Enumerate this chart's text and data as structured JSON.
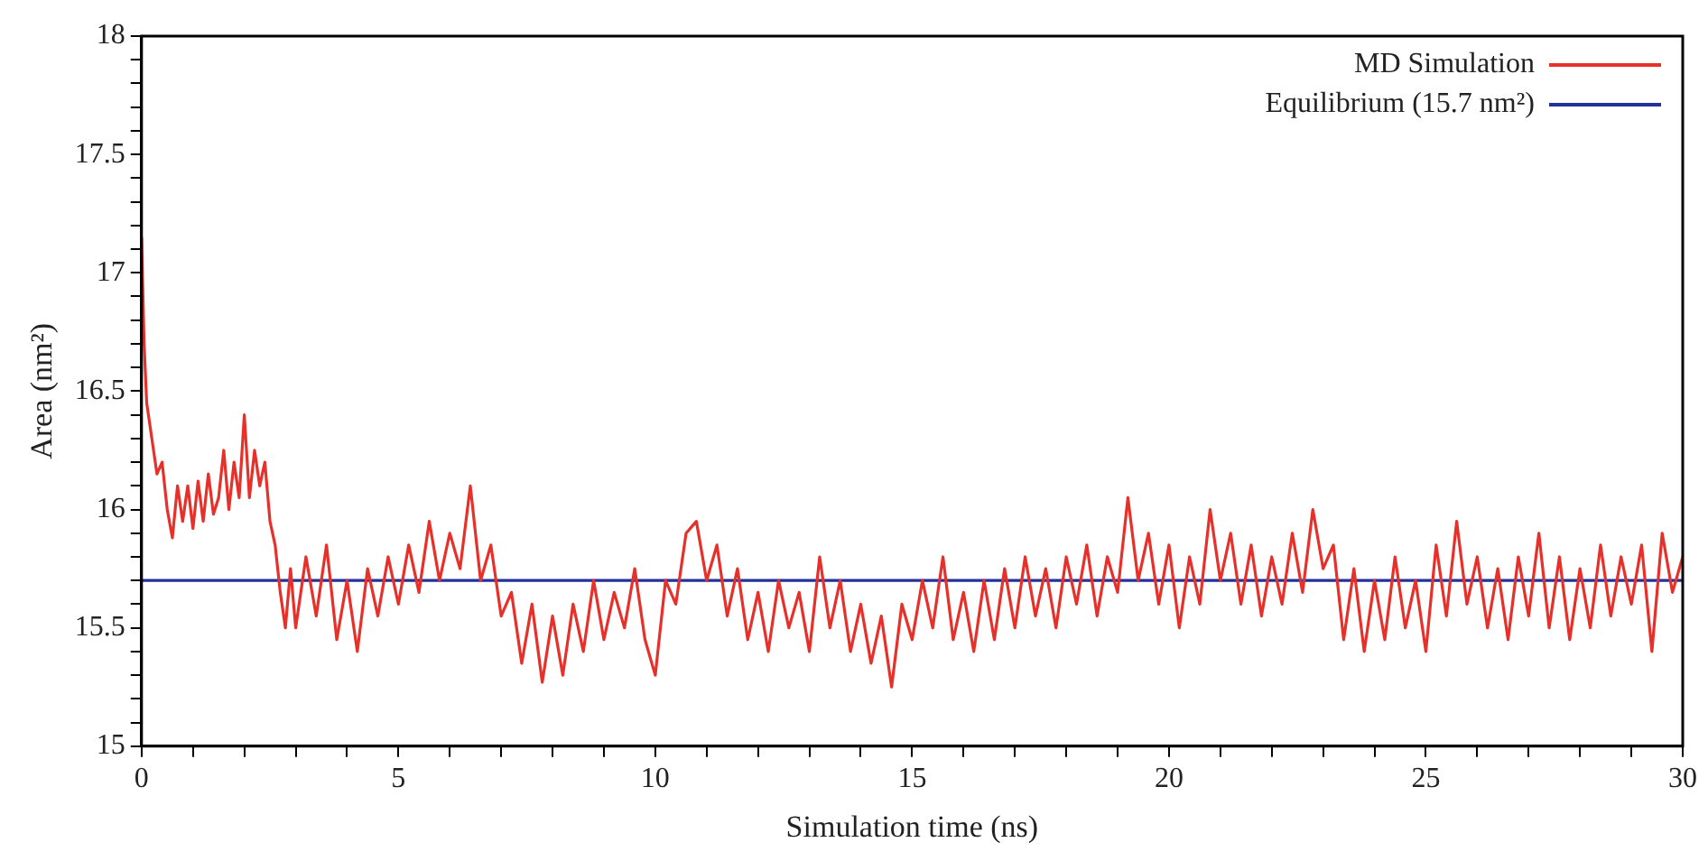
{
  "chart_data": {
    "type": "line",
    "xlabel": "Simulation time (ns)",
    "ylabel": "Area (nm²)",
    "xlim": [
      0,
      30
    ],
    "ylim": [
      15,
      18
    ],
    "xticks": [
      0,
      {
        "value": 1,
        "label": null
      },
      {
        "value": 2,
        "label": null
      },
      {
        "value": 3,
        "label": null
      },
      {
        "value": 4,
        "label": null
      },
      5,
      {
        "value": 6,
        "label": null
      },
      {
        "value": 7,
        "label": null
      },
      {
        "value": 8,
        "label": null
      },
      {
        "value": 9,
        "label": null
      },
      10,
      {
        "value": 11,
        "label": null
      },
      {
        "value": 12,
        "label": null
      },
      {
        "value": 13,
        "label": null
      },
      {
        "value": 14,
        "label": null
      },
      15,
      {
        "value": 16,
        "label": null
      },
      {
        "value": 17,
        "label": null
      },
      {
        "value": 18,
        "label": null
      },
      {
        "value": 19,
        "label": null
      },
      20,
      {
        "value": 21,
        "label": null
      },
      {
        "value": 22,
        "label": null
      },
      {
        "value": 23,
        "label": null
      },
      {
        "value": 24,
        "label": null
      },
      25,
      {
        "value": 26,
        "label": null
      },
      {
        "value": 27,
        "label": null
      },
      {
        "value": 28,
        "label": null
      },
      {
        "value": 29,
        "label": null
      },
      30
    ],
    "yticks": [
      15,
      {
        "value": 15.1,
        "label": null
      },
      {
        "value": 15.2,
        "label": null
      },
      {
        "value": 15.3,
        "label": null
      },
      {
        "value": 15.4,
        "label": null
      },
      15.5,
      {
        "value": 15.6,
        "label": null
      },
      {
        "value": 15.7,
        "label": null
      },
      {
        "value": 15.8,
        "label": null
      },
      {
        "value": 15.9,
        "label": null
      },
      16,
      {
        "value": 16.1,
        "label": null
      },
      {
        "value": 16.2,
        "label": null
      },
      {
        "value": 16.3,
        "label": null
      },
      {
        "value": 16.4,
        "label": null
      },
      16.5,
      {
        "value": 16.6,
        "label": null
      },
      {
        "value": 16.7,
        "label": null
      },
      {
        "value": 16.8,
        "label": null
      },
      {
        "value": 16.9,
        "label": null
      },
      17,
      {
        "value": 17.1,
        "label": null
      },
      {
        "value": 17.2,
        "label": null
      },
      {
        "value": 17.3,
        "label": null
      },
      {
        "value": 17.4,
        "label": null
      },
      17.5,
      {
        "value": 17.6,
        "label": null
      },
      {
        "value": 17.7,
        "label": null
      },
      {
        "value": 17.8,
        "label": null
      },
      {
        "value": 17.9,
        "label": null
      },
      18
    ],
    "grid": false,
    "legend": "top right",
    "marker": "none",
    "series": [
      {
        "name": "MD Simulation",
        "color": "#e8302a",
        "x": [
          0,
          0.05,
          0.1,
          0.2,
          0.3,
          0.4,
          0.5,
          0.6,
          0.7,
          0.8,
          0.9,
          1.0,
          1.1,
          1.2,
          1.3,
          1.4,
          1.5,
          1.6,
          1.7,
          1.8,
          1.9,
          2.0,
          2.1,
          2.2,
          2.3,
          2.4,
          2.5,
          2.6,
          2.7,
          2.8,
          2.9,
          3.0,
          3.2,
          3.4,
          3.6,
          3.8,
          4.0,
          4.2,
          4.4,
          4.6,
          4.8,
          5.0,
          5.2,
          5.4,
          5.6,
          5.8,
          6.0,
          6.2,
          6.4,
          6.6,
          6.8,
          7.0,
          7.2,
          7.4,
          7.6,
          7.8,
          8.0,
          8.2,
          8.4,
          8.6,
          8.8,
          9.0,
          9.2,
          9.4,
          9.6,
          9.8,
          10.0,
          10.2,
          10.4,
          10.6,
          10.8,
          11.0,
          11.2,
          11.4,
          11.6,
          11.8,
          12.0,
          12.2,
          12.4,
          12.6,
          12.8,
          13.0,
          13.2,
          13.4,
          13.6,
          13.8,
          14.0,
          14.2,
          14.4,
          14.6,
          14.8,
          15.0,
          15.2,
          15.4,
          15.6,
          15.8,
          16.0,
          16.2,
          16.4,
          16.6,
          16.8,
          17.0,
          17.2,
          17.4,
          17.6,
          17.8,
          18.0,
          18.2,
          18.4,
          18.6,
          18.8,
          19.0,
          19.2,
          19.4,
          19.6,
          19.8,
          20.0,
          20.2,
          20.4,
          20.6,
          20.8,
          21.0,
          21.2,
          21.4,
          21.6,
          21.8,
          22.0,
          22.2,
          22.4,
          22.6,
          22.8,
          23.0,
          23.2,
          23.4,
          23.6,
          23.8,
          24.0,
          24.2,
          24.4,
          24.6,
          24.8,
          25.0,
          25.2,
          25.4,
          25.6,
          25.8,
          26.0,
          26.2,
          26.4,
          26.6,
          26.8,
          27.0,
          27.2,
          27.4,
          27.6,
          27.8,
          28.0,
          28.2,
          28.4,
          28.6,
          28.8,
          29.0,
          29.2,
          29.4,
          29.6,
          29.8,
          30.0
        ],
        "values": [
          17.15,
          16.7,
          16.45,
          16.3,
          16.15,
          16.2,
          16.0,
          15.88,
          16.1,
          15.95,
          16.1,
          15.92,
          16.12,
          15.95,
          16.15,
          15.98,
          16.05,
          16.25,
          16.0,
          16.2,
          16.05,
          16.4,
          16.05,
          16.25,
          16.1,
          16.2,
          15.95,
          15.85,
          15.65,
          15.5,
          15.75,
          15.5,
          15.8,
          15.55,
          15.85,
          15.45,
          15.7,
          15.4,
          15.75,
          15.55,
          15.8,
          15.6,
          15.85,
          15.65,
          15.95,
          15.7,
          15.9,
          15.75,
          16.1,
          15.7,
          15.85,
          15.55,
          15.65,
          15.35,
          15.6,
          15.27,
          15.55,
          15.3,
          15.6,
          15.4,
          15.7,
          15.45,
          15.65,
          15.5,
          15.75,
          15.45,
          15.3,
          15.7,
          15.6,
          15.9,
          15.95,
          15.7,
          15.85,
          15.55,
          15.75,
          15.45,
          15.65,
          15.4,
          15.7,
          15.5,
          15.65,
          15.4,
          15.8,
          15.5,
          15.7,
          15.4,
          15.6,
          15.35,
          15.55,
          15.25,
          15.6,
          15.45,
          15.7,
          15.5,
          15.8,
          15.45,
          15.65,
          15.4,
          15.7,
          15.45,
          15.75,
          15.5,
          15.8,
          15.55,
          15.75,
          15.5,
          15.8,
          15.6,
          15.85,
          15.55,
          15.8,
          15.65,
          16.05,
          15.7,
          15.9,
          15.6,
          15.85,
          15.5,
          15.8,
          15.6,
          16.0,
          15.7,
          15.9,
          15.6,
          15.85,
          15.55,
          15.8,
          15.6,
          15.9,
          15.65,
          16.0,
          15.75,
          15.85,
          15.45,
          15.75,
          15.4,
          15.7,
          15.45,
          15.8,
          15.5,
          15.7,
          15.4,
          15.85,
          15.55,
          15.95,
          15.6,
          15.8,
          15.5,
          15.75,
          15.45,
          15.8,
          15.55,
          15.9,
          15.5,
          15.8,
          15.45,
          15.75,
          15.5,
          15.85,
          15.55,
          15.8,
          15.6,
          15.85,
          15.4,
          15.9,
          15.65,
          15.8
        ]
      },
      {
        "name": "Equilibrium (15.7 nm²)",
        "color": "#22329a",
        "x": [
          0,
          30
        ],
        "values": [
          15.7,
          15.7
        ]
      }
    ]
  }
}
